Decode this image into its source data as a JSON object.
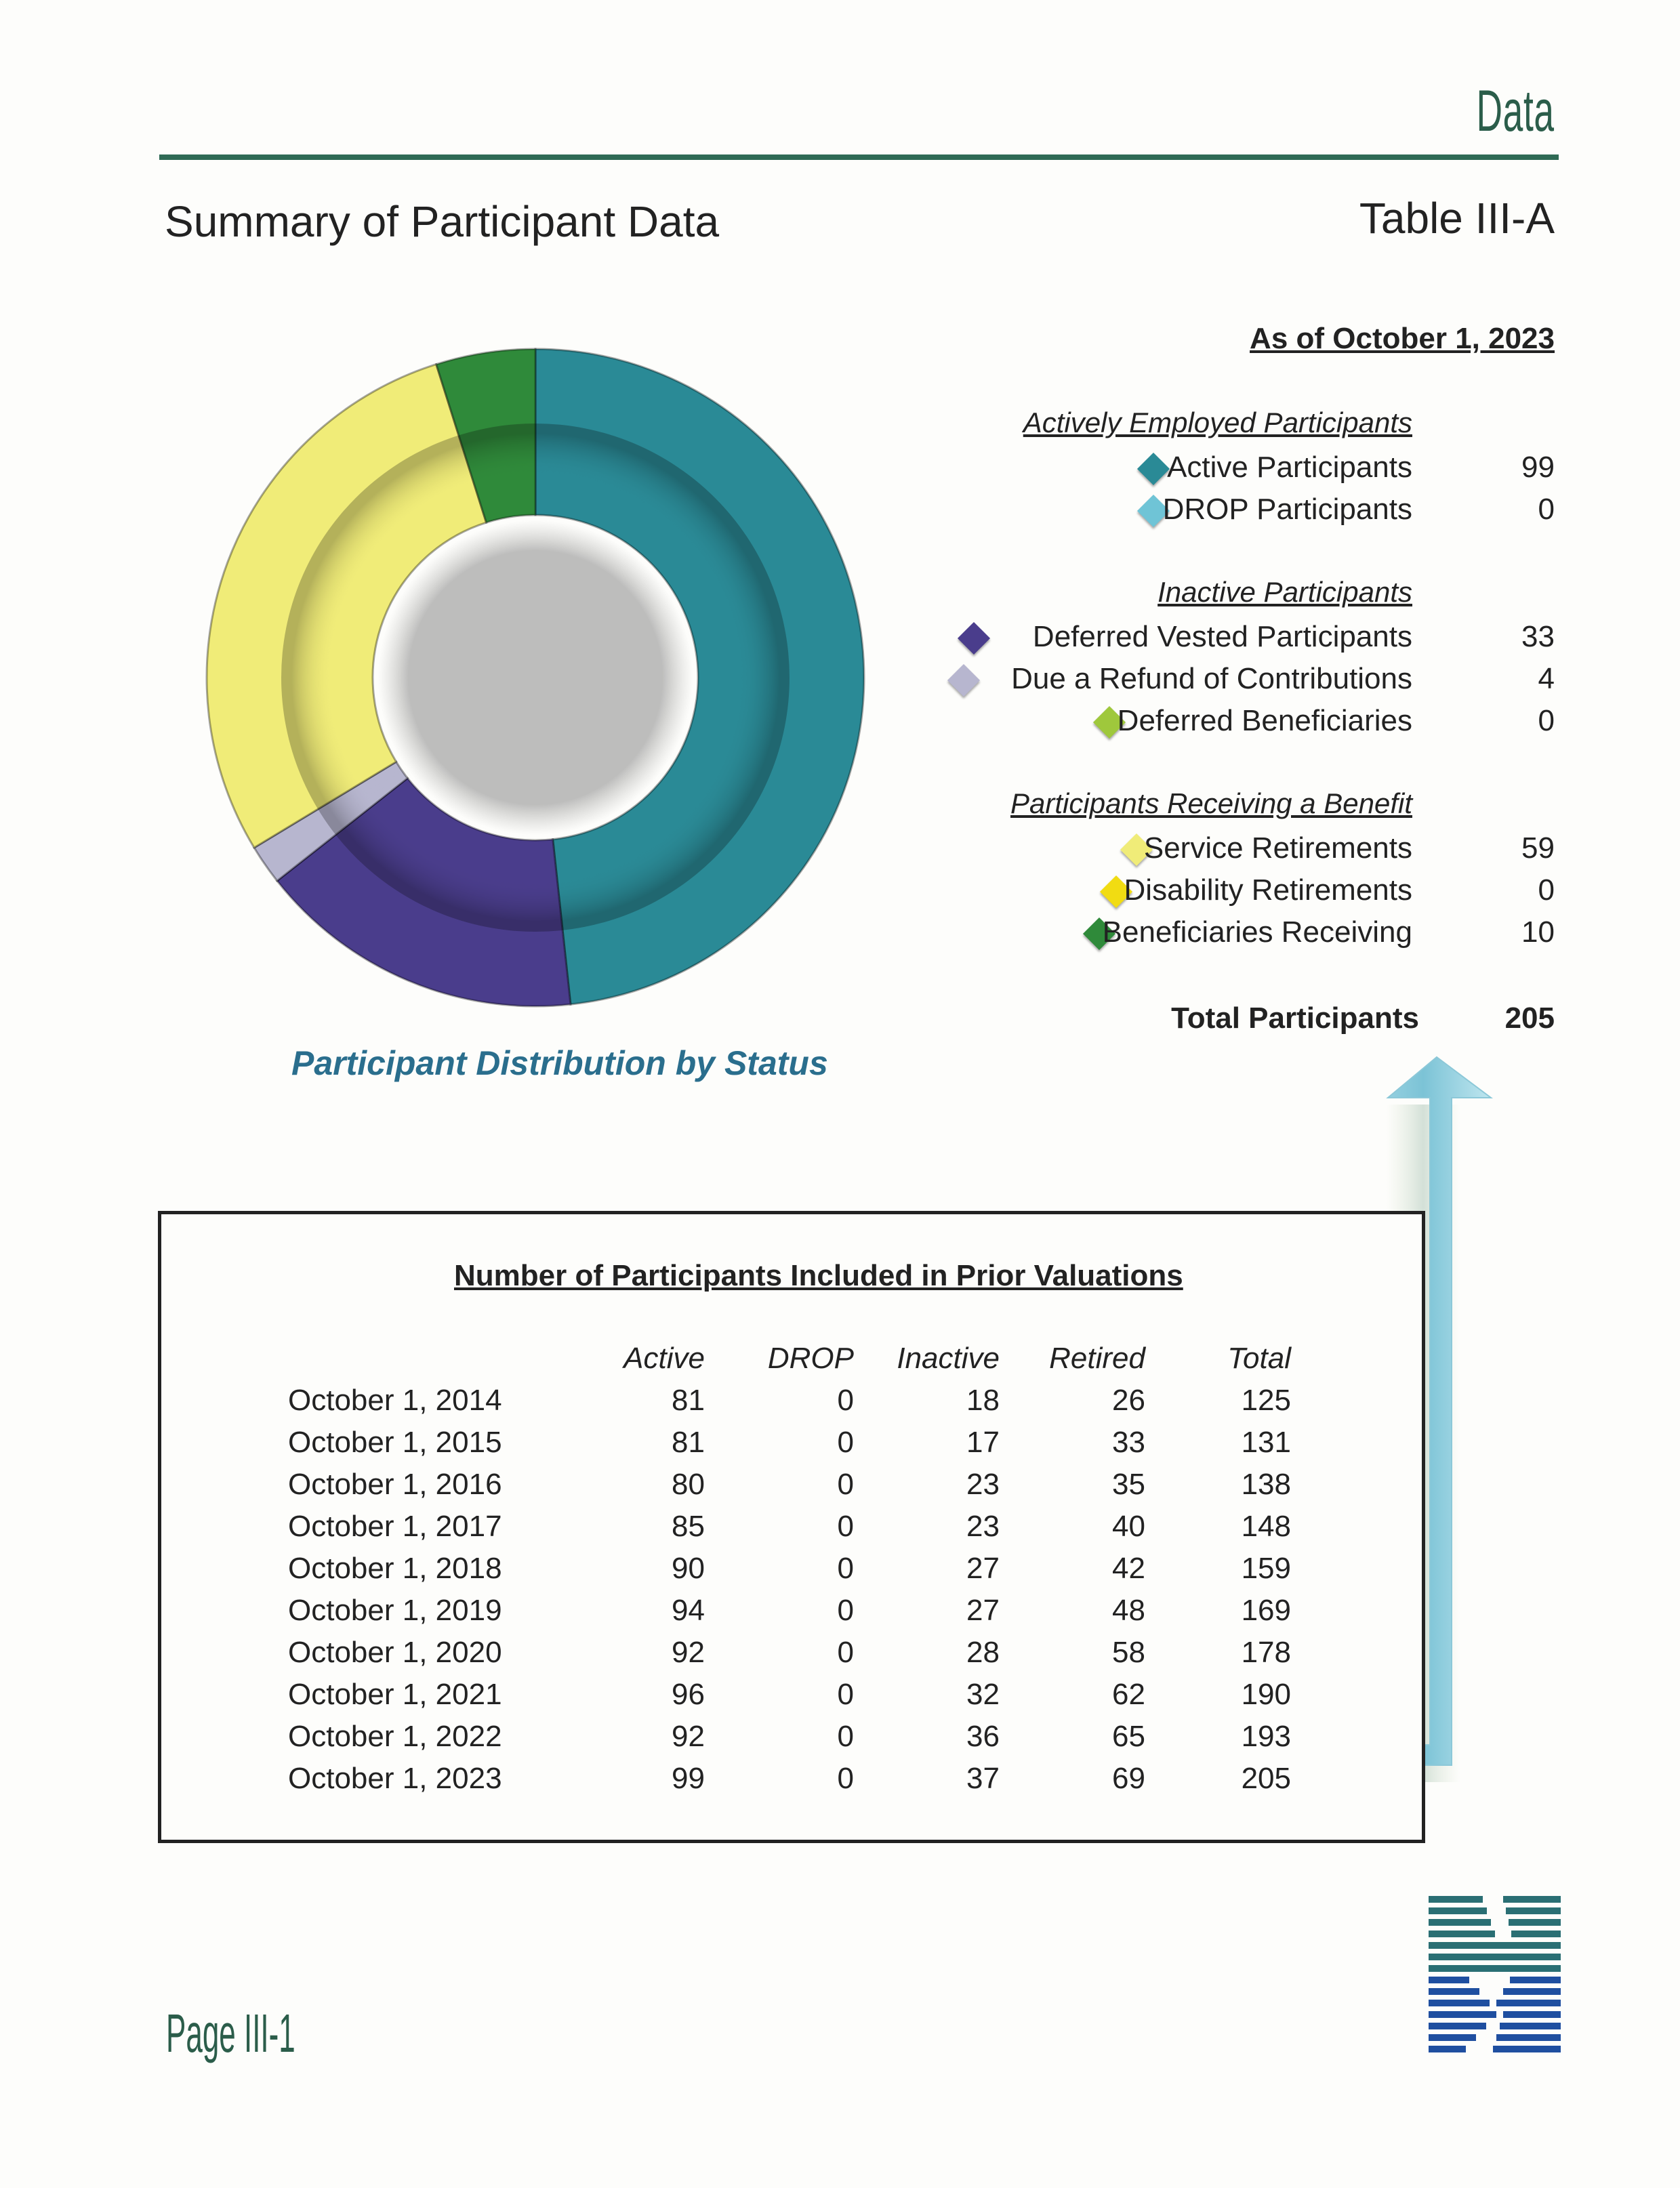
{
  "header": {
    "section_label": "Data",
    "page_title": "Summary of Participant Data",
    "table_id": "Table III-A"
  },
  "summary": {
    "as_of": "As of October 1, 2023",
    "groups": [
      {
        "heading": "Actively Employed Participants",
        "items": [
          {
            "label": "Active Participants",
            "value": "99",
            "color": "#2a8a96"
          },
          {
            "label": "DROP Participants",
            "value": "0",
            "color": "#6fc4d6"
          }
        ]
      },
      {
        "heading": "Inactive Participants",
        "items": [
          {
            "label": "Deferred Vested Participants",
            "value": "33",
            "color": "#4a3d8c"
          },
          {
            "label": "Due a Refund of Contributions",
            "value": "4",
            "color": "#b7b6cf"
          },
          {
            "label": "Deferred Beneficiaries",
            "value": "0",
            "color": "#9fc83c"
          }
        ]
      },
      {
        "heading": "Participants Receiving a Benefit",
        "items": [
          {
            "label": "Service Retirements",
            "value": "59",
            "color": "#f0ec78"
          },
          {
            "label": "Disability Retirements",
            "value": "0",
            "color": "#f1dc12"
          },
          {
            "label": "Beneficiaries Receiving",
            "value": "10",
            "color": "#2f8a3a"
          }
        ]
      }
    ],
    "total_label": "Total Participants",
    "total_value": "205"
  },
  "chart_data": {
    "type": "pie",
    "title": "Participant Distribution by Status",
    "categories": [
      "Active Participants",
      "DROP Participants",
      "Deferred Vested Participants",
      "Due a Refund of Contributions",
      "Deferred Beneficiaries",
      "Service Retirements",
      "Disability Retirements",
      "Beneficiaries Receiving"
    ],
    "values": [
      99,
      0,
      33,
      4,
      0,
      59,
      0,
      10
    ],
    "colors": [
      "#2a8a96",
      "#6fc4d6",
      "#4a3d8c",
      "#b7b6cf",
      "#9fc83c",
      "#f0ec78",
      "#f1dc12",
      "#2f8a3a"
    ],
    "donut": true,
    "legend": "right"
  },
  "prior_valuations": {
    "title": "Number of Participants Included in Prior Valuations",
    "columns": [
      "Active",
      "DROP",
      "Inactive",
      "Retired",
      "Total"
    ],
    "rows": [
      {
        "date": "October 1, 2014",
        "values": [
          "81",
          "0",
          "18",
          "26",
          "125"
        ]
      },
      {
        "date": "October 1, 2015",
        "values": [
          "81",
          "0",
          "17",
          "33",
          "131"
        ]
      },
      {
        "date": "October 1, 2016",
        "values": [
          "80",
          "0",
          "23",
          "35",
          "138"
        ]
      },
      {
        "date": "October 1, 2017",
        "values": [
          "85",
          "0",
          "23",
          "40",
          "148"
        ]
      },
      {
        "date": "October 1, 2018",
        "values": [
          "90",
          "0",
          "27",
          "42",
          "159"
        ]
      },
      {
        "date": "October 1, 2019",
        "values": [
          "94",
          "0",
          "27",
          "48",
          "169"
        ]
      },
      {
        "date": "October 1, 2020",
        "values": [
          "92",
          "0",
          "28",
          "58",
          "178"
        ]
      },
      {
        "date": "October 1, 2021",
        "values": [
          "96",
          "0",
          "32",
          "62",
          "190"
        ]
      },
      {
        "date": "October 1, 2022",
        "values": [
          "92",
          "0",
          "36",
          "65",
          "193"
        ]
      },
      {
        "date": "October 1, 2023",
        "values": [
          "99",
          "0",
          "37",
          "69",
          "205"
        ]
      }
    ]
  },
  "footer": {
    "page_number": "Page III-1"
  }
}
